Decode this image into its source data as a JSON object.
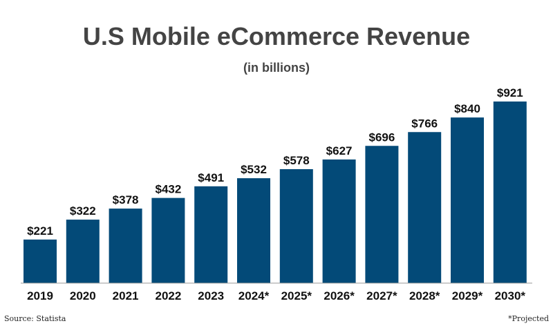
{
  "chart_data": {
    "type": "bar",
    "title": "U.S Mobile eCommerce Revenue",
    "subtitle": "(in billions)",
    "categories": [
      "2019",
      "2020",
      "2021",
      "2022",
      "2023",
      "2024*",
      "2025*",
      "2026*",
      "2027*",
      "2028*",
      "2029*",
      "2030*"
    ],
    "series": [
      {
        "values": [
          221,
          322,
          378,
          432,
          491,
          532,
          578,
          627,
          696,
          766,
          840,
          921
        ]
      }
    ],
    "data_labels": [
      "$221",
      "$322",
      "$378",
      "$432",
      "$491",
      "$532",
      "$578",
      "$627",
      "$696",
      "$766",
      "$840",
      "$921"
    ],
    "xlabel": "",
    "ylabel": "",
    "ylim": [
      0,
      921
    ],
    "grid": false,
    "legend": "none",
    "bar_color": "#034a78",
    "text_color": "#111111",
    "title_color": "#444444",
    "baseline_color": "#999999"
  },
  "footer": {
    "source": "Source: Statista",
    "note": "*Projected"
  }
}
